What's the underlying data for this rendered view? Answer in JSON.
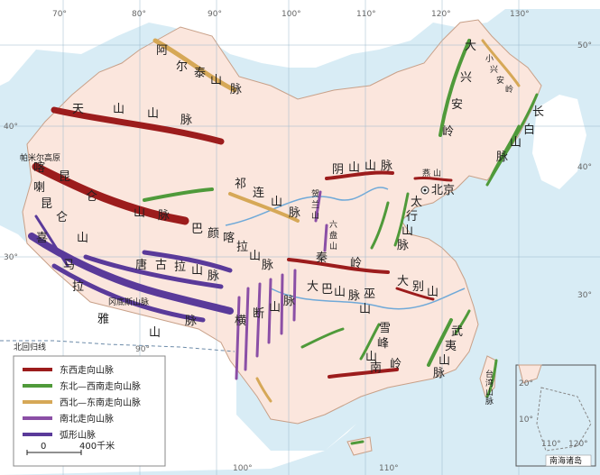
{
  "colors": {
    "ocean": "#d8ecf5",
    "land": "#fbe6dd",
    "neighbor": "#ffffff",
    "east_west": "#9c1c1c",
    "ne_sw": "#4f9a3a",
    "nw_se": "#d6a857",
    "north_south": "#8b4fa6",
    "arc": "#5a3a9a",
    "water": "#6fa9d8"
  },
  "ticks": {
    "top": [
      "70°",
      "80°",
      "90°",
      "100°",
      "110°",
      "120°",
      "130°"
    ],
    "left": [
      "40°",
      "30°"
    ],
    "right": [
      "50°",
      "40°",
      "30°"
    ],
    "bottom": [
      "90°",
      "100°",
      "110°"
    ],
    "inset": [
      "20°",
      "10°",
      "110°",
      "120°"
    ]
  },
  "tropic_label": "北回归线",
  "inset_label": "南海诸岛",
  "mountains": {
    "altai": [
      "阿",
      "尔",
      "泰",
      "山",
      "脉"
    ],
    "tianshan": [
      "天",
      "山",
      "山",
      "脉"
    ],
    "kunlun": [
      "昆",
      "仑",
      "山",
      "脉"
    ],
    "karakoram": [
      "喀",
      "喇",
      "昆",
      "仑",
      "山"
    ],
    "pamir": "帕米尔高原",
    "qilian": [
      "祁",
      "连",
      "山",
      "脉"
    ],
    "bayan_har": [
      "巴",
      "颜",
      "喀",
      "拉",
      "山",
      "脉"
    ],
    "tanggula": [
      "唐",
      "古",
      "拉",
      "山",
      "脉"
    ],
    "himalaya": [
      "喜",
      "马",
      "拉",
      "雅",
      "山",
      "脉"
    ],
    "gangdise": "冈底斯山脉",
    "hengduan": [
      "横",
      "断",
      "山",
      "脉"
    ],
    "helan": [
      "贺",
      "兰",
      "山"
    ],
    "liupan": [
      "六",
      "盘",
      "山"
    ],
    "yinshan": [
      "阴",
      "山",
      "山",
      "脉"
    ],
    "yanshan": [
      "燕",
      "山"
    ],
    "taihang": [
      "太",
      "行",
      "山",
      "脉"
    ],
    "qinling": [
      "秦",
      "岭"
    ],
    "dabashan": [
      "大",
      "巴",
      "山",
      "脉"
    ],
    "wushan": [
      "巫",
      "山"
    ],
    "dabie": [
      "大",
      "别",
      "山"
    ],
    "xuefeng": [
      "雪",
      "峰",
      "山"
    ],
    "wuyi": [
      "武",
      "夷",
      "山",
      "脉"
    ],
    "nanling": [
      "南",
      "岭"
    ],
    "daxinganling": [
      "大",
      "兴",
      "安",
      "岭"
    ],
    "xiaoxinganling": [
      "小",
      "兴",
      "安",
      "岭"
    ],
    "changbai": [
      "长",
      "白",
      "山",
      "脉"
    ],
    "taiwan": [
      "台",
      "湾",
      "山",
      "脉"
    ]
  },
  "beijing_label": "北京",
  "legend": [
    {
      "label": "东西走向山脉",
      "color": "#9c1c1c"
    },
    {
      "label": "东北—西南走向山脉",
      "color": "#4f9a3a"
    },
    {
      "label": "西北—东南走向山脉",
      "color": "#d6a857"
    },
    {
      "label": "南北走向山脉",
      "color": "#8b4fa6"
    },
    {
      "label": "弧形山脉",
      "color": "#5a3a9a"
    }
  ],
  "scale": {
    "zero": "0",
    "end": "400千米"
  }
}
